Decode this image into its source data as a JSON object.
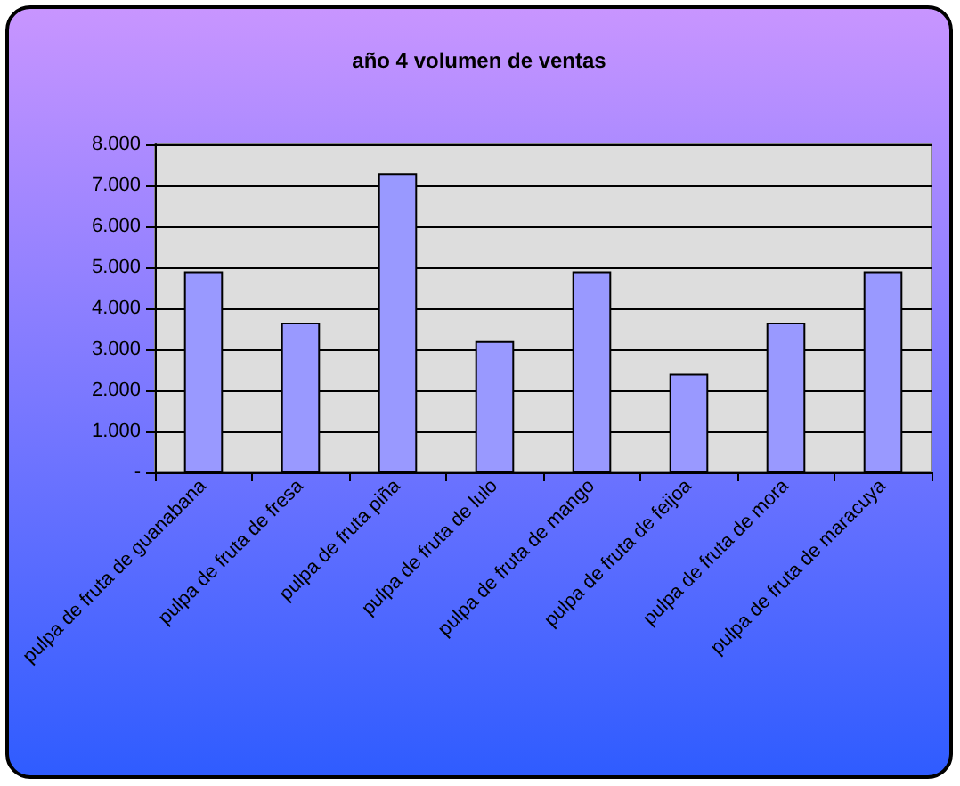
{
  "chart_data": {
    "type": "bar",
    "title": "año 4 volumen de ventas",
    "categories": [
      "pulpa de fruta de guanabana",
      "pulpa de fruta de fresa",
      "pulpa de fruta piña",
      "pulpa de fruta de lulo",
      "pulpa de fruta de mango",
      "pulpa de fruta de feijoa",
      "pulpa de fruta de mora",
      "pulpa de fruta de maracuya"
    ],
    "values": [
      4900,
      3650,
      7300,
      3200,
      4900,
      2400,
      3650,
      4900
    ],
    "color": "#9999ff",
    "ylim": [
      0,
      8000
    ],
    "yticks": [
      {
        "value": 0,
        "label": "-"
      },
      {
        "value": 1000,
        "label": "1.000"
      },
      {
        "value": 2000,
        "label": "2.000"
      },
      {
        "value": 3000,
        "label": "3.000"
      },
      {
        "value": 4000,
        "label": "4.000"
      },
      {
        "value": 5000,
        "label": "5.000"
      },
      {
        "value": 6000,
        "label": "6.000"
      },
      {
        "value": 7000,
        "label": "7.000"
      },
      {
        "value": 8000,
        "label": "8.000"
      }
    ],
    "grid": "y"
  }
}
